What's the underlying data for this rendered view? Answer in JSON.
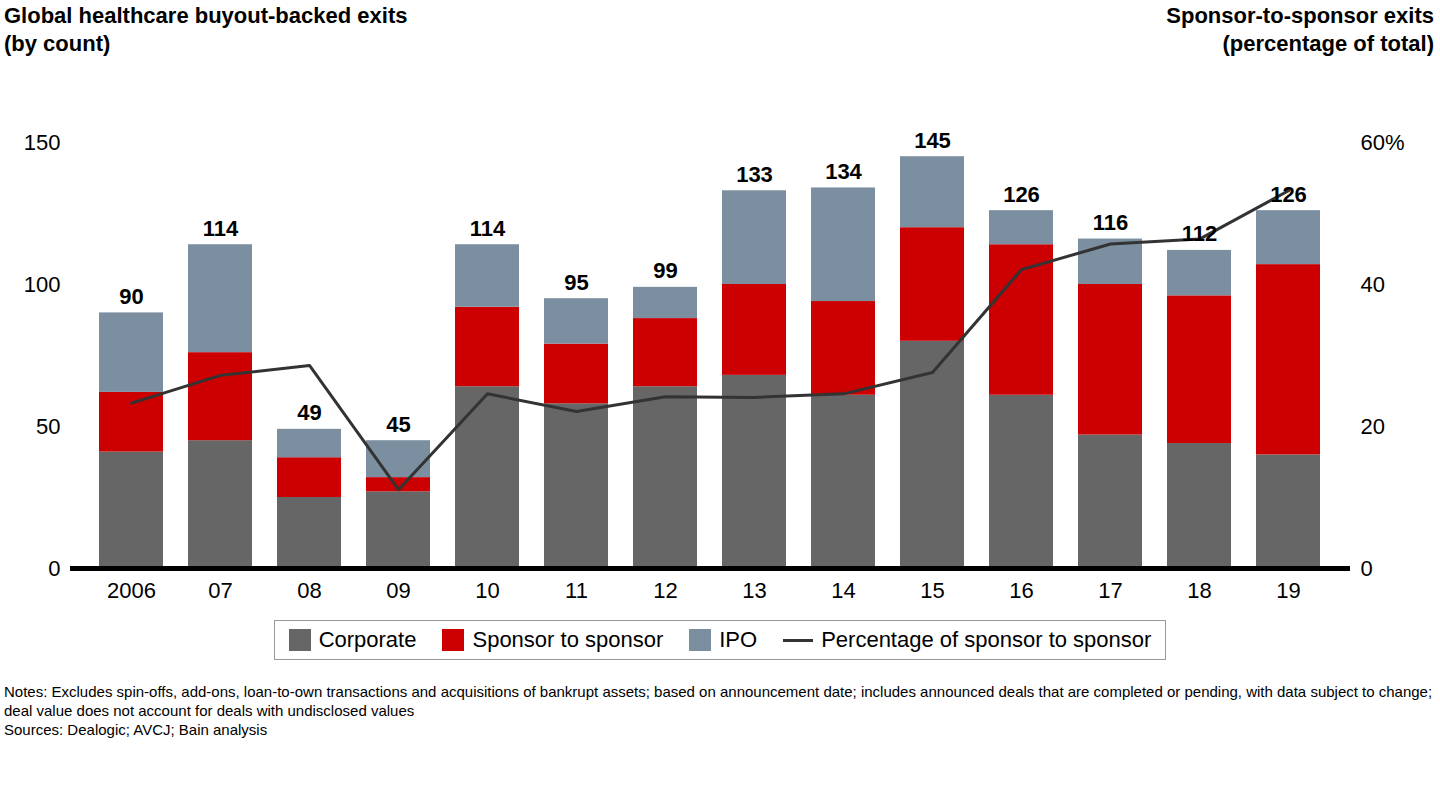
{
  "chart_data": {
    "type": "bar",
    "y_label": "Global healthcare buyout-backed exits\n(by count)",
    "y2_label": "Sponsor-to-sponsor exits\n(percentage of total)",
    "categories": [
      "2006",
      "07",
      "08",
      "09",
      "10",
      "11",
      "12",
      "13",
      "14",
      "15",
      "16",
      "17",
      "18",
      "19"
    ],
    "series": [
      {
        "name": "Corporate",
        "color": "#666666",
        "values": [
          41,
          45,
          25,
          27,
          64,
          58,
          64,
          68,
          61,
          80,
          61,
          47,
          44,
          40
        ]
      },
      {
        "name": "Sponsor to sponsor",
        "color": "#cc0000",
        "values": [
          21,
          31,
          14,
          5,
          28,
          21,
          24,
          32,
          33,
          40,
          53,
          53,
          52,
          67
        ]
      },
      {
        "name": "IPO",
        "color": "#7b8fa1",
        "values": [
          28,
          38,
          10,
          13,
          22,
          16,
          11,
          33,
          40,
          25,
          12,
          16,
          16,
          19
        ]
      },
      {
        "name": "Percentage of sponsor to sponsor",
        "type": "line",
        "axis": "y2",
        "color": "#333333",
        "values": [
          23.3,
          27.2,
          28.6,
          11.1,
          24.6,
          22.1,
          24.2,
          24.1,
          24.6,
          27.6,
          42.1,
          45.7,
          46.4,
          53.2
        ]
      }
    ],
    "totals": [
      90,
      114,
      49,
      45,
      114,
      95,
      99,
      133,
      134,
      145,
      126,
      116,
      112,
      126
    ],
    "stacked": true,
    "ylim": [
      0,
      150
    ],
    "yticks": [
      0,
      50,
      100,
      150
    ],
    "y2lim": [
      0,
      60
    ],
    "y2ticks": [
      0,
      20,
      40,
      {
        "value": 60,
        "label": "60%"
      }
    ],
    "grid": false,
    "legend": "bottom",
    "notes": "Notes: Excludes spin-offs, add-ons, loan-to-own transactions and acquisitions of bankrupt assets; based on announcement date; includes announced deals that are completed or pending, with data subject to change; deal value does not account for deals with undisclosed values",
    "sources": "Sources: Dealogic; AVCJ; Bain analysis"
  }
}
